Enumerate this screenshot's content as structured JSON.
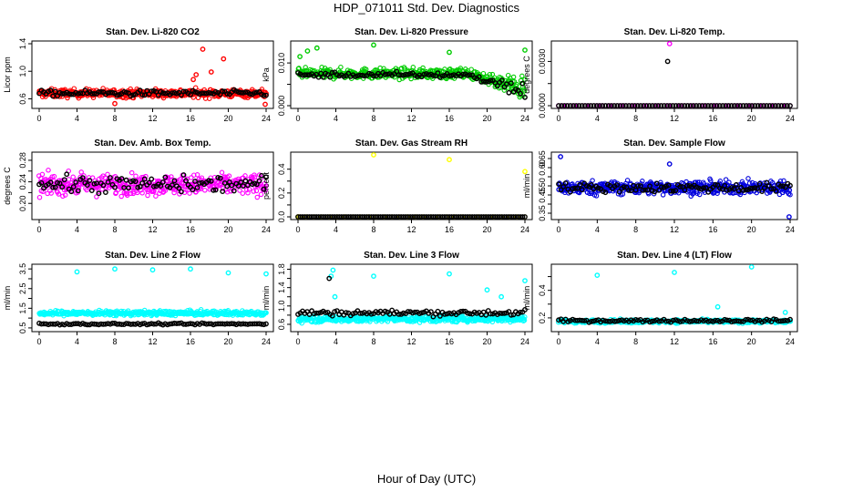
{
  "figure": {
    "title": "HDP_071011  Std. Dev. Diagnostics",
    "xlabel": "Hour of Day (UTC)",
    "x_ticks": [
      0,
      4,
      8,
      12,
      16,
      20,
      24
    ]
  },
  "chart_data": [
    {
      "type": "scatter",
      "title": "Stan. Dev. Li-820 CO2",
      "ylabel": "Licor ppm",
      "xlim": [
        0,
        24
      ],
      "ylim": [
        0.5,
        1.4
      ],
      "yticks": [
        0.6,
        1.0,
        1.4
      ],
      "ytick_labels": [
        "0.6",
        "1.0",
        "1.4"
      ],
      "series": [
        {
          "color": "#ff0000",
          "x_range": [
            0,
            24
          ],
          "count": 420,
          "base": 0.68,
          "spread": 0.06,
          "outliers": [
            {
              "x": 16.3,
              "y": 0.88
            },
            {
              "x": 16.6,
              "y": 0.95
            },
            {
              "x": 17.3,
              "y": 1.32
            },
            {
              "x": 18.2,
              "y": 0.99
            },
            {
              "x": 19.5,
              "y": 1.18
            },
            {
              "x": 8.0,
              "y": 0.53
            },
            {
              "x": 23.9,
              "y": 0.52
            }
          ]
        },
        {
          "color": "#000000",
          "x_range": [
            0,
            24
          ],
          "count": 100,
          "base": 0.68,
          "spread": 0.04,
          "outliers": []
        }
      ]
    },
    {
      "type": "scatter",
      "title": "Stan. Dev. Li-820 Pressure",
      "ylabel": "kPa",
      "xlim": [
        0,
        24
      ],
      "ylim": [
        0.0,
        0.0145
      ],
      "yticks": [
        0.0,
        0.005,
        0.01
      ],
      "ytick_labels": [
        "0.000",
        "",
        "0.010"
      ],
      "series": [
        {
          "color": "#00cc00",
          "x_range": [
            0,
            24
          ],
          "count": 420,
          "base": 0.0075,
          "spread": 0.0012,
          "trend": "drop_after_18",
          "outliers": [
            {
              "x": 8.0,
              "y": 0.0142
            },
            {
              "x": 16.0,
              "y": 0.0125
            },
            {
              "x": 24.0,
              "y": 0.013
            },
            {
              "x": 0.2,
              "y": 0.0115
            },
            {
              "x": 1.0,
              "y": 0.0128
            },
            {
              "x": 2.0,
              "y": 0.0135
            }
          ]
        },
        {
          "color": "#000000",
          "x_range": [
            0,
            24
          ],
          "count": 100,
          "base": 0.0072,
          "spread": 0.0006,
          "trend": "drop_after_18",
          "outliers": []
        }
      ]
    },
    {
      "type": "scatter",
      "title": "Stan. Dev. Li-820 Temp.",
      "ylabel": "degrees C",
      "xlim": [
        0,
        24
      ],
      "ylim": [
        0.0,
        0.0042
      ],
      "yticks": [
        0.0,
        0.0015,
        0.003
      ],
      "ytick_labels": [
        "0.0000",
        "",
        "0.0030"
      ],
      "series": [
        {
          "color": "#ff00ff",
          "x_range": [
            0,
            24
          ],
          "count": 60,
          "base": 0.0,
          "spread": 0.0,
          "outliers": [
            {
              "x": 11.5,
              "y": 0.0042
            }
          ]
        },
        {
          "color": "#000000",
          "x_range": [
            0,
            24
          ],
          "count": 80,
          "base": 0.0,
          "spread": 0.0,
          "outliers": [
            {
              "x": 11.3,
              "y": 0.003
            }
          ]
        }
      ]
    },
    {
      "type": "scatter",
      "title": "Stan. Dev. Amb. Box Temp.",
      "ylabel": "degrees C",
      "xlim": [
        0,
        24
      ],
      "ylim": [
        0.175,
        0.29
      ],
      "yticks": [
        0.2,
        0.22,
        0.24,
        0.26,
        0.28
      ],
      "ytick_labels": [
        "0.20",
        "",
        "0.24",
        "",
        "0.28"
      ],
      "series": [
        {
          "color": "#ff00ff",
          "x_range": [
            0,
            24
          ],
          "count": 420,
          "base": 0.235,
          "spread": 0.018,
          "outliers": []
        },
        {
          "color": "#000000",
          "x_range": [
            0,
            24
          ],
          "count": 100,
          "base": 0.235,
          "spread": 0.015,
          "outliers": []
        }
      ]
    },
    {
      "type": "scatter",
      "title": "Stan. Dev. Gas Stream RH",
      "ylabel": "percent",
      "xlim": [
        0,
        24
      ],
      "ylim": [
        0.0,
        0.52
      ],
      "yticks": [
        0.0,
        0.1,
        0.2,
        0.3,
        0.4
      ],
      "ytick_labels": [
        "0.0",
        "",
        "0.2",
        "",
        "0.4"
      ],
      "series": [
        {
          "color": "#ffff00",
          "x_range": [
            0,
            24
          ],
          "count": 30,
          "base": 0.0,
          "spread": 0.0,
          "outliers": [
            {
              "x": 8.0,
              "y": 0.52
            },
            {
              "x": 16.0,
              "y": 0.48
            },
            {
              "x": 24.0,
              "y": 0.38
            },
            {
              "x": 0.1,
              "y": 0.0
            }
          ]
        },
        {
          "color": "#000000",
          "x_range": [
            0,
            24
          ],
          "count": 100,
          "base": 0.0,
          "spread": 0.0,
          "outliers": []
        }
      ]
    },
    {
      "type": "scatter",
      "title": "Stan. Dev. Sample Flow",
      "ylabel": "ml/min",
      "xlim": [
        0,
        24
      ],
      "ylim": [
        0.33,
        0.67
      ],
      "yticks": [
        0.35,
        0.4,
        0.45,
        0.5,
        0.55,
        0.6,
        0.65
      ],
      "ytick_labels": [
        "0.35",
        "",
        "0.45",
        "0.50",
        "",
        "0.60",
        "0.65"
      ],
      "series": [
        {
          "color": "#0000dd",
          "x_range": [
            0,
            24
          ],
          "count": 480,
          "base": 0.49,
          "spread": 0.035,
          "outliers": [
            {
              "x": 0.2,
              "y": 0.66
            },
            {
              "x": 11.5,
              "y": 0.62
            },
            {
              "x": 23.9,
              "y": 0.33
            }
          ]
        },
        {
          "color": "#000000",
          "x_range": [
            0,
            24
          ],
          "count": 100,
          "base": 0.49,
          "spread": 0.025,
          "outliers": []
        }
      ]
    },
    {
      "type": "scatter",
      "title": "Stan. Dev. Line 2 Flow",
      "ylabel": "ml/min",
      "xlim": [
        0,
        24
      ],
      "ylim": [
        0.45,
        3.6
      ],
      "yticks": [
        0.5,
        1.0,
        1.5,
        2.0,
        2.5,
        3.0,
        3.5
      ],
      "ytick_labels": [
        "0.5",
        "",
        "1.5",
        "",
        "2.5",
        "",
        "3.5"
      ],
      "series": [
        {
          "color": "#00ffff",
          "x_range": [
            0,
            24
          ],
          "count": 420,
          "base": 1.25,
          "spread": 0.12,
          "outliers": [
            {
              "x": 4.0,
              "y": 3.35
            },
            {
              "x": 8.0,
              "y": 3.5
            },
            {
              "x": 12.0,
              "y": 3.45
            },
            {
              "x": 16.0,
              "y": 3.5
            },
            {
              "x": 20.0,
              "y": 3.3
            },
            {
              "x": 24.0,
              "y": 3.25
            }
          ]
        },
        {
          "color": "#000000",
          "x_range": [
            0,
            24
          ],
          "count": 100,
          "base": 0.7,
          "spread": 0.04,
          "outliers": []
        }
      ]
    },
    {
      "type": "scatter",
      "title": "Stan. Dev. Line 3 Flow",
      "ylabel": "ml/min",
      "xlim": [
        0,
        24
      ],
      "ylim": [
        0.5,
        1.85
      ],
      "yticks": [
        0.6,
        0.8,
        1.0,
        1.2,
        1.4,
        1.6,
        1.8
      ],
      "ytick_labels": [
        "0.6",
        "",
        "1.0",
        "",
        "1.4",
        "",
        "1.8"
      ],
      "series": [
        {
          "color": "#00ffff",
          "x_range": [
            0,
            24
          ],
          "count": 420,
          "base": 0.72,
          "spread": 0.07,
          "outliers": [
            {
              "x": 3.7,
              "y": 1.78
            },
            {
              "x": 3.5,
              "y": 1.65
            },
            {
              "x": 8.0,
              "y": 1.65
            },
            {
              "x": 16.0,
              "y": 1.7
            },
            {
              "x": 24.0,
              "y": 1.55
            },
            {
              "x": 3.9,
              "y": 1.2
            },
            {
              "x": 20.0,
              "y": 1.35
            },
            {
              "x": 21.5,
              "y": 1.2
            }
          ]
        },
        {
          "color": "#000000",
          "x_range": [
            0,
            24
          ],
          "count": 100,
          "base": 0.85,
          "spread": 0.06,
          "outliers": [
            {
              "x": 3.3,
              "y": 1.6
            }
          ]
        }
      ]
    },
    {
      "type": "scatter",
      "title": "Stan. Dev. Line 4 (LT) Flow",
      "ylabel": "ml/min",
      "xlim": [
        0,
        24
      ],
      "ylim": [
        0.12,
        0.57
      ],
      "yticks": [
        0.2,
        0.3,
        0.4,
        0.5
      ],
      "ytick_labels": [
        "0.2",
        "",
        "0.4",
        ""
      ],
      "series": [
        {
          "color": "#00ffff",
          "x_range": [
            0,
            24
          ],
          "count": 420,
          "base": 0.175,
          "spread": 0.012,
          "outliers": [
            {
              "x": 4.0,
              "y": 0.51
            },
            {
              "x": 12.0,
              "y": 0.53
            },
            {
              "x": 20.0,
              "y": 0.57
            },
            {
              "x": 16.5,
              "y": 0.28
            },
            {
              "x": 23.5,
              "y": 0.24
            }
          ]
        },
        {
          "color": "#000000",
          "x_range": [
            0,
            24
          ],
          "count": 100,
          "base": 0.18,
          "spread": 0.01,
          "outliers": []
        }
      ]
    }
  ]
}
